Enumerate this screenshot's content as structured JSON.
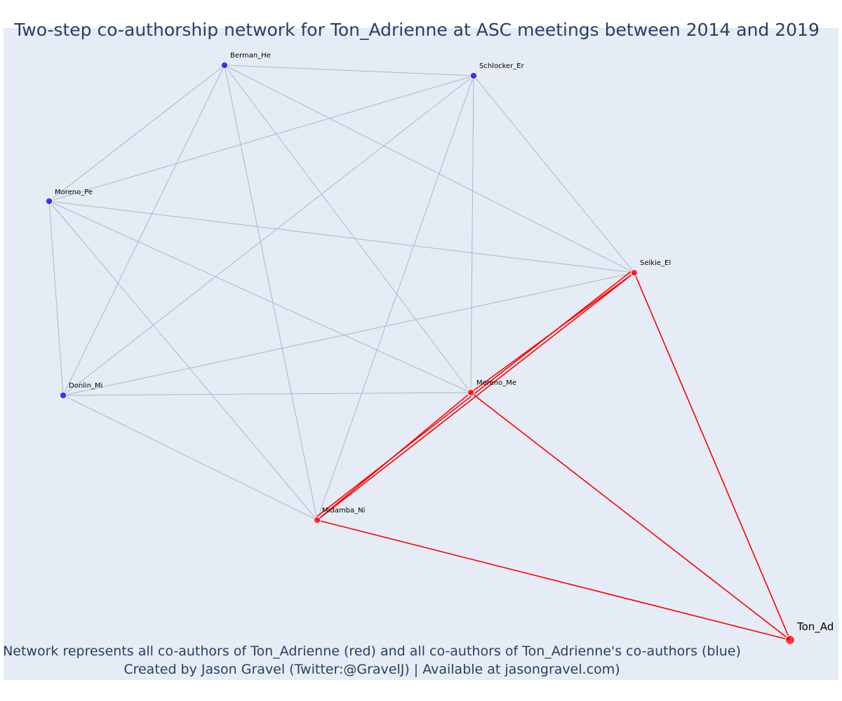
{
  "title": "Two-step co-authorship network for Ton_Adrienne at ASC meetings between 2014 and 2019",
  "caption_line1": "Network represents all co-authors of Ton_Adrienne (red) and all co-authors of Ton_Adrienne's co-authors (blue)",
  "caption_line2": "Created by Jason Gravel (Twitter:@GravelJ) | Available at jasongravel.com)",
  "colors": {
    "background": "#e5ecf6",
    "focal_and_coauthor": "#ff0000",
    "second_step": "#0000ff",
    "edge_gray": "#b0b6c6",
    "edge_red": "#ff0000"
  },
  "nodes": [
    {
      "id": "Berman_He",
      "label": "Berman_He",
      "group": "second_step"
    },
    {
      "id": "Schlocker_Er",
      "label": "Schlocker_Er",
      "group": "second_step"
    },
    {
      "id": "Moreno_Pe",
      "label": "Moreno_Pe",
      "group": "second_step"
    },
    {
      "id": "Donlin_Mi",
      "label": "Donlin_Mi",
      "group": "second_step"
    },
    {
      "id": "Selkie_El",
      "label": "Selkie_El",
      "group": "coauthor"
    },
    {
      "id": "Moreno_Me",
      "label": "Moreno_Me",
      "group": "coauthor"
    },
    {
      "id": "Midamba_Ni",
      "label": "Midamba_Ni",
      "group": "coauthor"
    },
    {
      "id": "Ton_Ad",
      "label": "Ton_Ad",
      "group": "focal"
    }
  ],
  "edges": [
    {
      "source": "Berman_He",
      "target": "Schlocker_Er",
      "type": "gray"
    },
    {
      "source": "Berman_He",
      "target": "Moreno_Pe",
      "type": "gray"
    },
    {
      "source": "Berman_He",
      "target": "Donlin_Mi",
      "type": "gray"
    },
    {
      "source": "Berman_He",
      "target": "Selkie_El",
      "type": "gray"
    },
    {
      "source": "Berman_He",
      "target": "Moreno_Me",
      "type": "gray"
    },
    {
      "source": "Berman_He",
      "target": "Midamba_Ni",
      "type": "gray"
    },
    {
      "source": "Schlocker_Er",
      "target": "Moreno_Pe",
      "type": "gray"
    },
    {
      "source": "Schlocker_Er",
      "target": "Donlin_Mi",
      "type": "gray"
    },
    {
      "source": "Schlocker_Er",
      "target": "Selkie_El",
      "type": "gray"
    },
    {
      "source": "Schlocker_Er",
      "target": "Moreno_Me",
      "type": "gray"
    },
    {
      "source": "Schlocker_Er",
      "target": "Midamba_Ni",
      "type": "gray"
    },
    {
      "source": "Moreno_Pe",
      "target": "Donlin_Mi",
      "type": "gray"
    },
    {
      "source": "Moreno_Pe",
      "target": "Selkie_El",
      "type": "gray"
    },
    {
      "source": "Moreno_Pe",
      "target": "Moreno_Me",
      "type": "gray"
    },
    {
      "source": "Moreno_Pe",
      "target": "Midamba_Ni",
      "type": "gray"
    },
    {
      "source": "Donlin_Mi",
      "target": "Selkie_El",
      "type": "gray"
    },
    {
      "source": "Donlin_Mi",
      "target": "Moreno_Me",
      "type": "gray"
    },
    {
      "source": "Donlin_Mi",
      "target": "Midamba_Ni",
      "type": "gray"
    },
    {
      "source": "Selkie_El",
      "target": "Moreno_Me",
      "type": "red"
    },
    {
      "source": "Selkie_El",
      "target": "Midamba_Ni",
      "type": "red"
    },
    {
      "source": "Moreno_Me",
      "target": "Midamba_Ni",
      "type": "red"
    },
    {
      "source": "Selkie_El",
      "target": "Ton_Ad",
      "type": "red"
    },
    {
      "source": "Moreno_Me",
      "target": "Ton_Ad",
      "type": "red"
    },
    {
      "source": "Midamba_Ni",
      "target": "Ton_Ad",
      "type": "red"
    }
  ]
}
